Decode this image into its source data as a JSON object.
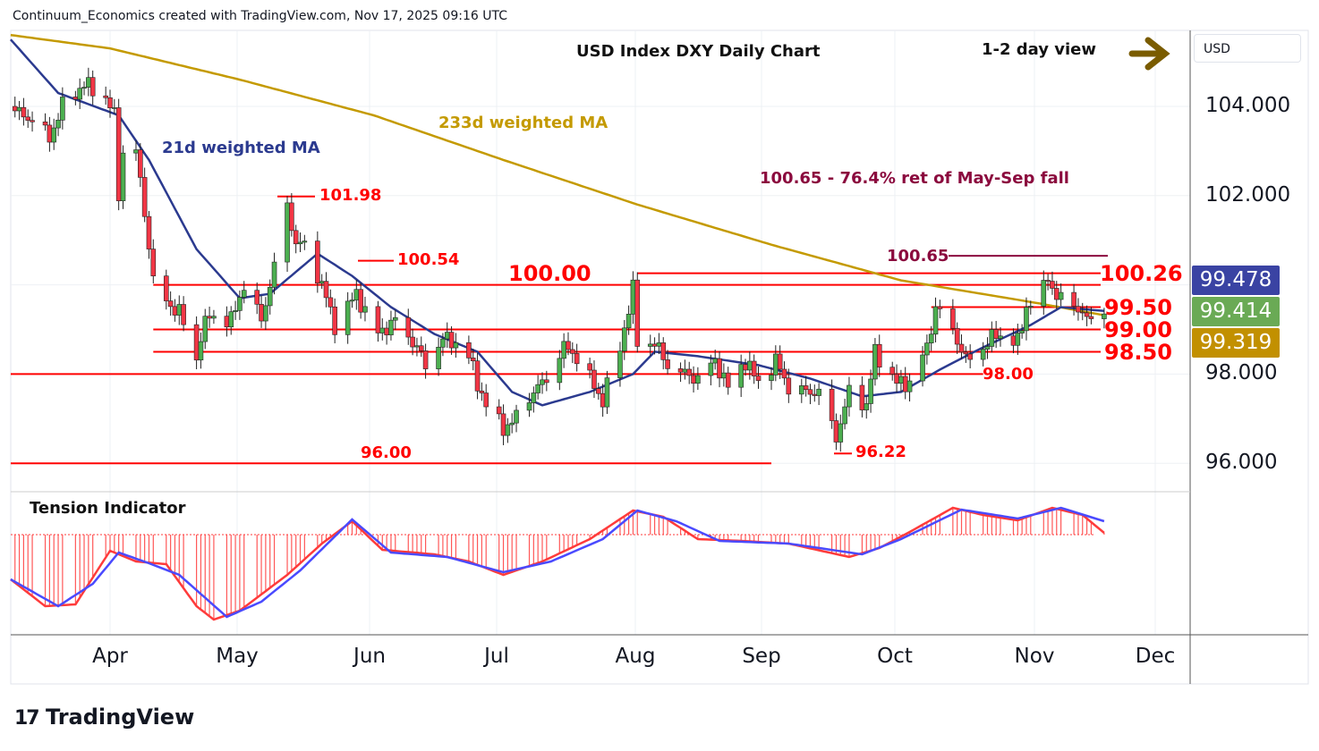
{
  "header": {
    "credit": "Continuum_Economics created with TradingView.com, Nov 17, 2025 09:16 UTC",
    "title": "USD Index DXY Daily Chart",
    "view": "1-2 day view",
    "currency": "USD",
    "brand": "TradingView"
  },
  "colors": {
    "up": "#4caf50",
    "down": "#f23645",
    "ma21": "#2b3a8f",
    "ma233": "#c49a00",
    "levels": "#ff0000",
    "retrace": "#8b0a3e",
    "tension_red": "#ff3b3b",
    "tension_blue": "#4a4aff",
    "badge_last": "#3a43a3",
    "badge_ma21": "#6aaa55",
    "badge_ma233": "#c29000",
    "arrow": "#7a5c00"
  },
  "badges": {
    "last": "99.478",
    "ma21": "99.414",
    "ma233": "99.319"
  },
  "chart_data": {
    "type": "candlestick",
    "title": "USD Index DXY Daily Chart",
    "x_ticks": [
      "Apr",
      "May",
      "Jun",
      "Jul",
      "Aug",
      "Sep",
      "Oct",
      "Nov",
      "Dec"
    ],
    "y_ticks": [
      "104.000",
      "102.000",
      "98.000",
      "96.000"
    ],
    "ylim": [
      95.3,
      105.7
    ],
    "close_anchors": [
      [
        "2025-03-10",
        103.9
      ],
      [
        "2025-03-14",
        103.7
      ],
      [
        "2025-03-18",
        103.3
      ],
      [
        "2025-03-21",
        104.0
      ],
      [
        "2025-03-26",
        104.5
      ],
      [
        "2025-03-31",
        104.2
      ],
      [
        "2025-04-02",
        103.8
      ],
      [
        "2025-04-03",
        102.0
      ],
      [
        "2025-04-04",
        103.0
      ],
      [
        "2025-04-07",
        103.0
      ],
      [
        "2025-04-10",
        100.9
      ],
      [
        "2025-04-11",
        100.1
      ],
      [
        "2025-04-14",
        99.6
      ],
      [
        "2025-04-17",
        99.4
      ],
      [
        "2025-04-21",
        98.3
      ],
      [
        "2025-04-22",
        98.9
      ],
      [
        "2025-04-24",
        99.3
      ],
      [
        "2025-04-29",
        99.2
      ],
      [
        "2025-05-02",
        100.0
      ],
      [
        "2025-05-06",
        99.2
      ],
      [
        "2025-05-09",
        100.4
      ],
      [
        "2025-05-12",
        101.8
      ],
      [
        "2025-05-14",
        100.9
      ],
      [
        "2025-05-16",
        100.9
      ],
      [
        "2025-05-20",
        100.0
      ],
      [
        "2025-05-23",
        99.1
      ],
      [
        "2025-05-28",
        99.8
      ],
      [
        "2025-05-30",
        99.4
      ],
      [
        "2025-06-02",
        98.9
      ],
      [
        "2025-06-06",
        99.2
      ],
      [
        "2025-06-11",
        98.6
      ],
      [
        "2025-06-13",
        98.2
      ],
      [
        "2025-06-17",
        98.8
      ],
      [
        "2025-06-20",
        98.7
      ],
      [
        "2025-06-23",
        98.4
      ],
      [
        "2025-06-25",
        97.8
      ],
      [
        "2025-06-27",
        97.3
      ],
      [
        "2025-07-01",
        96.8
      ],
      [
        "2025-07-03",
        96.9
      ],
      [
        "2025-07-07",
        97.5
      ],
      [
        "2025-07-11",
        97.9
      ],
      [
        "2025-07-15",
        98.6
      ],
      [
        "2025-07-17",
        98.5
      ],
      [
        "2025-07-21",
        97.9
      ],
      [
        "2025-07-24",
        97.4
      ],
      [
        "2025-07-28",
        98.6
      ],
      [
        "2025-07-31",
        99.9
      ],
      [
        "2025-08-01",
        98.7
      ],
      [
        "2025-08-05",
        98.7
      ],
      [
        "2025-08-08",
        98.2
      ],
      [
        "2025-08-12",
        98.0
      ],
      [
        "2025-08-15",
        97.9
      ],
      [
        "2025-08-19",
        98.3
      ],
      [
        "2025-08-22",
        97.7
      ],
      [
        "2025-08-26",
        98.3
      ],
      [
        "2025-08-29",
        97.8
      ],
      [
        "2025-09-02",
        98.3
      ],
      [
        "2025-09-05",
        97.7
      ],
      [
        "2025-09-09",
        97.6
      ],
      [
        "2025-09-12",
        97.6
      ],
      [
        "2025-09-16",
        96.6
      ],
      [
        "2025-09-17",
        96.9
      ],
      [
        "2025-09-19",
        97.6
      ],
      [
        "2025-09-23",
        97.3
      ],
      [
        "2025-09-25",
        98.5
      ],
      [
        "2025-09-30",
        97.8
      ],
      [
        "2025-10-03",
        97.8
      ],
      [
        "2025-10-07",
        98.6
      ],
      [
        "2025-10-09",
        99.5
      ],
      [
        "2025-10-13",
        99.0
      ],
      [
        "2025-10-16",
        98.3
      ],
      [
        "2025-10-20",
        98.6
      ],
      [
        "2025-10-23",
        98.9
      ],
      [
        "2025-10-28",
        98.7
      ],
      [
        "2025-10-30",
        99.5
      ],
      [
        "2025-11-03",
        99.9
      ],
      [
        "2025-11-04",
        100.2
      ],
      [
        "2025-11-06",
        99.7
      ],
      [
        "2025-11-10",
        99.6
      ],
      [
        "2025-11-13",
        99.2
      ],
      [
        "2025-11-17",
        99.48
      ]
    ],
    "ma21": {
      "label": "21d weighted MA",
      "points": [
        [
          "2025-03-09",
          105.5
        ],
        [
          "2025-03-20",
          104.3
        ],
        [
          "2025-04-03",
          103.8
        ],
        [
          "2025-04-10",
          102.8
        ],
        [
          "2025-04-21",
          100.8
        ],
        [
          "2025-05-01",
          99.7
        ],
        [
          "2025-05-08",
          99.8
        ],
        [
          "2025-05-19",
          100.7
        ],
        [
          "2025-05-27",
          100.2
        ],
        [
          "2025-06-05",
          99.5
        ],
        [
          "2025-06-15",
          98.9
        ],
        [
          "2025-06-25",
          98.5
        ],
        [
          "2025-07-03",
          97.6
        ],
        [
          "2025-07-10",
          97.3
        ],
        [
          "2025-07-21",
          97.6
        ],
        [
          "2025-07-31",
          98.0
        ],
        [
          "2025-08-05",
          98.5
        ],
        [
          "2025-08-15",
          98.4
        ],
        [
          "2025-08-29",
          98.2
        ],
        [
          "2025-09-10",
          97.9
        ],
        [
          "2025-09-22",
          97.5
        ],
        [
          "2025-10-01",
          97.6
        ],
        [
          "2025-10-10",
          98.1
        ],
        [
          "2025-10-20",
          98.6
        ],
        [
          "2025-10-31",
          99.1
        ],
        [
          "2025-11-07",
          99.5
        ],
        [
          "2025-11-17",
          99.414
        ]
      ]
    },
    "ma233": {
      "label": "233d weighted MA",
      "points": [
        [
          "2025-03-09",
          105.6
        ],
        [
          "2025-04-01",
          105.3
        ],
        [
          "2025-05-01",
          104.6
        ],
        [
          "2025-06-01",
          103.8
        ],
        [
          "2025-07-01",
          102.8
        ],
        [
          "2025-08-01",
          101.8
        ],
        [
          "2025-09-01",
          100.9
        ],
        [
          "2025-10-01",
          100.1
        ],
        [
          "2025-11-01",
          99.6
        ],
        [
          "2025-11-17",
          99.319
        ]
      ]
    },
    "levels": [
      {
        "value": 100.0,
        "label": "100.00",
        "from": "2025-04-11",
        "to": "2025-11-19"
      },
      {
        "value": 99.5,
        "label": "99.50",
        "from": "2025-10-08",
        "to": "2025-11-19"
      },
      {
        "value": 99.0,
        "label": "99.00",
        "from": "2025-04-11",
        "to": "2025-11-19"
      },
      {
        "value": 98.5,
        "label": "98.50",
        "from": "2025-04-11",
        "to": "2025-11-19"
      },
      {
        "value": 98.0,
        "label": "98.00",
        "from": "2025-03-09",
        "to": "2025-10-20"
      },
      {
        "value": 96.0,
        "label": "96.00",
        "from": "2025-03-09",
        "to": "2025-09-01"
      },
      {
        "value": 100.26,
        "label": "100.26",
        "from": "2025-08-01",
        "to": "2025-11-19"
      }
    ],
    "retracement": {
      "value": 100.65,
      "label": "100.65",
      "note": "100.65 - 76.4% ret of May-Sep fall"
    },
    "swing_labels": [
      {
        "value": 101.98,
        "label": "101.98"
      },
      {
        "value": 100.54,
        "label": "100.54"
      },
      {
        "value": 96.22,
        "label": "96.22"
      }
    ],
    "tension": {
      "label": "Tension Indicator",
      "red": [
        [
          "2025-03-09",
          -0.5
        ],
        [
          "2025-03-17",
          -0.8
        ],
        [
          "2025-03-24",
          -0.78
        ],
        [
          "2025-04-01",
          -0.18
        ],
        [
          "2025-04-07",
          -0.3
        ],
        [
          "2025-04-14",
          -0.33
        ],
        [
          "2025-04-21",
          -0.8
        ],
        [
          "2025-04-25",
          -0.95
        ],
        [
          "2025-05-01",
          -0.85
        ],
        [
          "2025-05-12",
          -0.45
        ],
        [
          "2025-05-20",
          -0.1
        ],
        [
          "2025-05-27",
          0.15
        ],
        [
          "2025-06-03",
          -0.17
        ],
        [
          "2025-06-15",
          -0.22
        ],
        [
          "2025-06-23",
          -0.3
        ],
        [
          "2025-07-01",
          -0.45
        ],
        [
          "2025-07-10",
          -0.3
        ],
        [
          "2025-07-21",
          -0.05
        ],
        [
          "2025-07-31",
          0.27
        ],
        [
          "2025-08-07",
          0.2
        ],
        [
          "2025-08-15",
          -0.05
        ],
        [
          "2025-08-25",
          -0.07
        ],
        [
          "2025-09-05",
          -0.1
        ],
        [
          "2025-09-19",
          -0.25
        ],
        [
          "2025-09-26",
          -0.15
        ],
        [
          "2025-10-03",
          0.03
        ],
        [
          "2025-10-13",
          0.3
        ],
        [
          "2025-10-20",
          0.22
        ],
        [
          "2025-10-28",
          0.16
        ],
        [
          "2025-11-05",
          0.3
        ],
        [
          "2025-11-12",
          0.22
        ],
        [
          "2025-11-17",
          0.02
        ]
      ],
      "blue": [
        [
          "2025-03-09",
          -0.5
        ],
        [
          "2025-03-20",
          -0.8
        ],
        [
          "2025-03-28",
          -0.55
        ],
        [
          "2025-04-03",
          -0.2
        ],
        [
          "2025-04-10",
          -0.32
        ],
        [
          "2025-04-17",
          -0.45
        ],
        [
          "2025-04-28",
          -0.92
        ],
        [
          "2025-05-06",
          -0.75
        ],
        [
          "2025-05-15",
          -0.4
        ],
        [
          "2025-05-27",
          0.17
        ],
        [
          "2025-06-05",
          -0.2
        ],
        [
          "2025-06-18",
          -0.25
        ],
        [
          "2025-07-01",
          -0.42
        ],
        [
          "2025-07-12",
          -0.3
        ],
        [
          "2025-07-24",
          -0.05
        ],
        [
          "2025-08-01",
          0.27
        ],
        [
          "2025-08-10",
          0.15
        ],
        [
          "2025-08-20",
          -0.07
        ],
        [
          "2025-09-05",
          -0.1
        ],
        [
          "2025-09-22",
          -0.22
        ],
        [
          "2025-10-01",
          -0.05
        ],
        [
          "2025-10-15",
          0.28
        ],
        [
          "2025-10-28",
          0.18
        ],
        [
          "2025-11-07",
          0.3
        ],
        [
          "2025-11-17",
          0.15
        ]
      ]
    }
  }
}
